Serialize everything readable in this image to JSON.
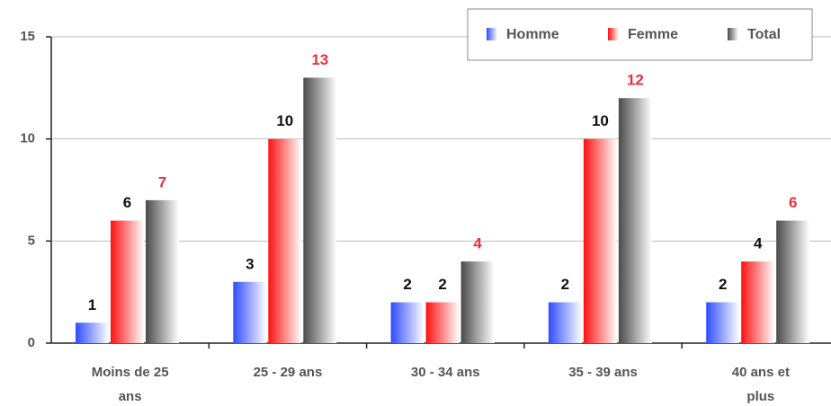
{
  "chart_data": {
    "type": "bar",
    "categories": [
      "Moins de 25 ans",
      "25 - 29 ans",
      "30 - 34 ans",
      "35 - 39 ans",
      "40 ans et plus"
    ],
    "series": [
      {
        "name": "Homme",
        "color": "#2f4cff",
        "label_color": "#111111",
        "values": [
          1,
          3,
          2,
          2,
          2
        ]
      },
      {
        "name": "Femme",
        "color": "#ff1010",
        "label_color": "#111111",
        "values": [
          6,
          10,
          2,
          10,
          4
        ]
      },
      {
        "name": "Total",
        "color": "#4a4a4a",
        "label_color": "#e8303a",
        "values": [
          7,
          13,
          4,
          12,
          6
        ]
      }
    ],
    "ylim": [
      0,
      15
    ],
    "yticks": [
      0,
      5,
      10,
      15
    ],
    "grid": true,
    "legend": "top-right"
  }
}
